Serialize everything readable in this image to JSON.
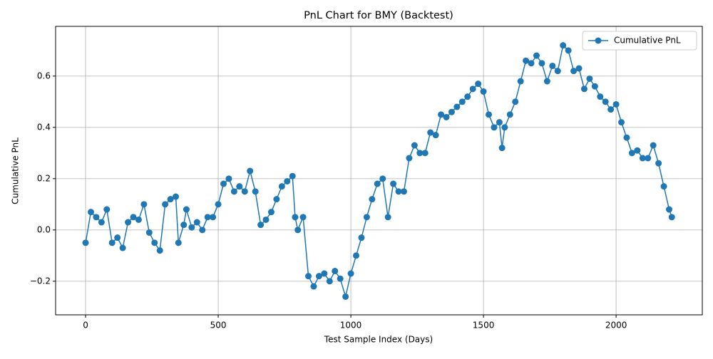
{
  "chart_data": {
    "type": "line",
    "title": "PnL Chart for BMY (Backtest)",
    "x_label": "Test Sample Index (Days)",
    "y_label": "Cumulative PnL",
    "x": [
      0,
      20,
      40,
      60,
      80,
      100,
      120,
      140,
      160,
      180,
      200,
      220,
      240,
      260,
      280,
      300,
      320,
      340,
      350,
      370,
      380,
      400,
      420,
      440,
      460,
      480,
      500,
      520,
      540,
      560,
      580,
      600,
      620,
      640,
      660,
      680,
      700,
      720,
      740,
      760,
      780,
      790,
      800,
      820,
      840,
      860,
      880,
      900,
      920,
      940,
      960,
      980,
      1000,
      1020,
      1040,
      1060,
      1080,
      1100,
      1120,
      1140,
      1160,
      1180,
      1200,
      1220,
      1240,
      1260,
      1280,
      1300,
      1320,
      1340,
      1360,
      1380,
      1400,
      1420,
      1440,
      1460,
      1480,
      1500,
      1520,
      1540,
      1560,
      1570,
      1580,
      1600,
      1620,
      1640,
      1660,
      1680,
      1700,
      1720,
      1740,
      1760,
      1780,
      1800,
      1820,
      1840,
      1860,
      1880,
      1900,
      1920,
      1940,
      1960,
      1980,
      2000,
      2020,
      2040,
      2060,
      2080,
      2100,
      2120,
      2140,
      2160,
      2180,
      2200,
      2210
    ],
    "series": [
      {
        "name": "Cumulative PnL",
        "color": "#1f77b4",
        "values": [
          -0.05,
          0.07,
          0.05,
          0.03,
          0.08,
          -0.05,
          -0.03,
          -0.07,
          0.03,
          0.05,
          0.04,
          0.1,
          -0.01,
          -0.05,
          -0.08,
          0.1,
          0.12,
          0.13,
          -0.05,
          0.02,
          0.08,
          0.01,
          0.03,
          0.0,
          0.05,
          0.05,
          0.1,
          0.18,
          0.2,
          0.15,
          0.17,
          0.15,
          0.23,
          0.15,
          0.02,
          0.04,
          0.07,
          0.12,
          0.17,
          0.19,
          0.21,
          0.05,
          0.0,
          0.05,
          -0.18,
          -0.22,
          -0.18,
          -0.17,
          -0.2,
          -0.16,
          -0.19,
          -0.26,
          -0.17,
          -0.1,
          -0.03,
          0.05,
          0.12,
          0.18,
          0.2,
          0.05,
          0.18,
          0.15,
          0.15,
          0.28,
          0.33,
          0.3,
          0.3,
          0.38,
          0.37,
          0.45,
          0.44,
          0.46,
          0.48,
          0.5,
          0.52,
          0.55,
          0.57,
          0.54,
          0.45,
          0.4,
          0.42,
          0.32,
          0.4,
          0.45,
          0.5,
          0.58,
          0.66,
          0.65,
          0.68,
          0.65,
          0.58,
          0.64,
          0.62,
          0.72,
          0.7,
          0.62,
          0.63,
          0.55,
          0.59,
          0.56,
          0.52,
          0.5,
          0.47,
          0.49,
          0.42,
          0.36,
          0.3,
          0.31,
          0.28,
          0.28,
          0.33,
          0.26,
          0.17,
          0.08,
          0.05
        ]
      }
    ],
    "xlim": [
      -113,
      2325
    ],
    "ylim": [
      -0.331,
      0.794
    ],
    "xticks": [
      0,
      500,
      1000,
      1500,
      2000
    ],
    "yticks": [
      {
        "value": -0.2,
        "label": "−0.2"
      },
      {
        "value": 0,
        "label": "0.0"
      },
      {
        "value": 0.2,
        "label": "0.2"
      },
      {
        "value": 0.4,
        "label": "0.4"
      },
      {
        "value": 0.6,
        "label": "0.6"
      }
    ],
    "grid": true,
    "legend": "upper right"
  }
}
